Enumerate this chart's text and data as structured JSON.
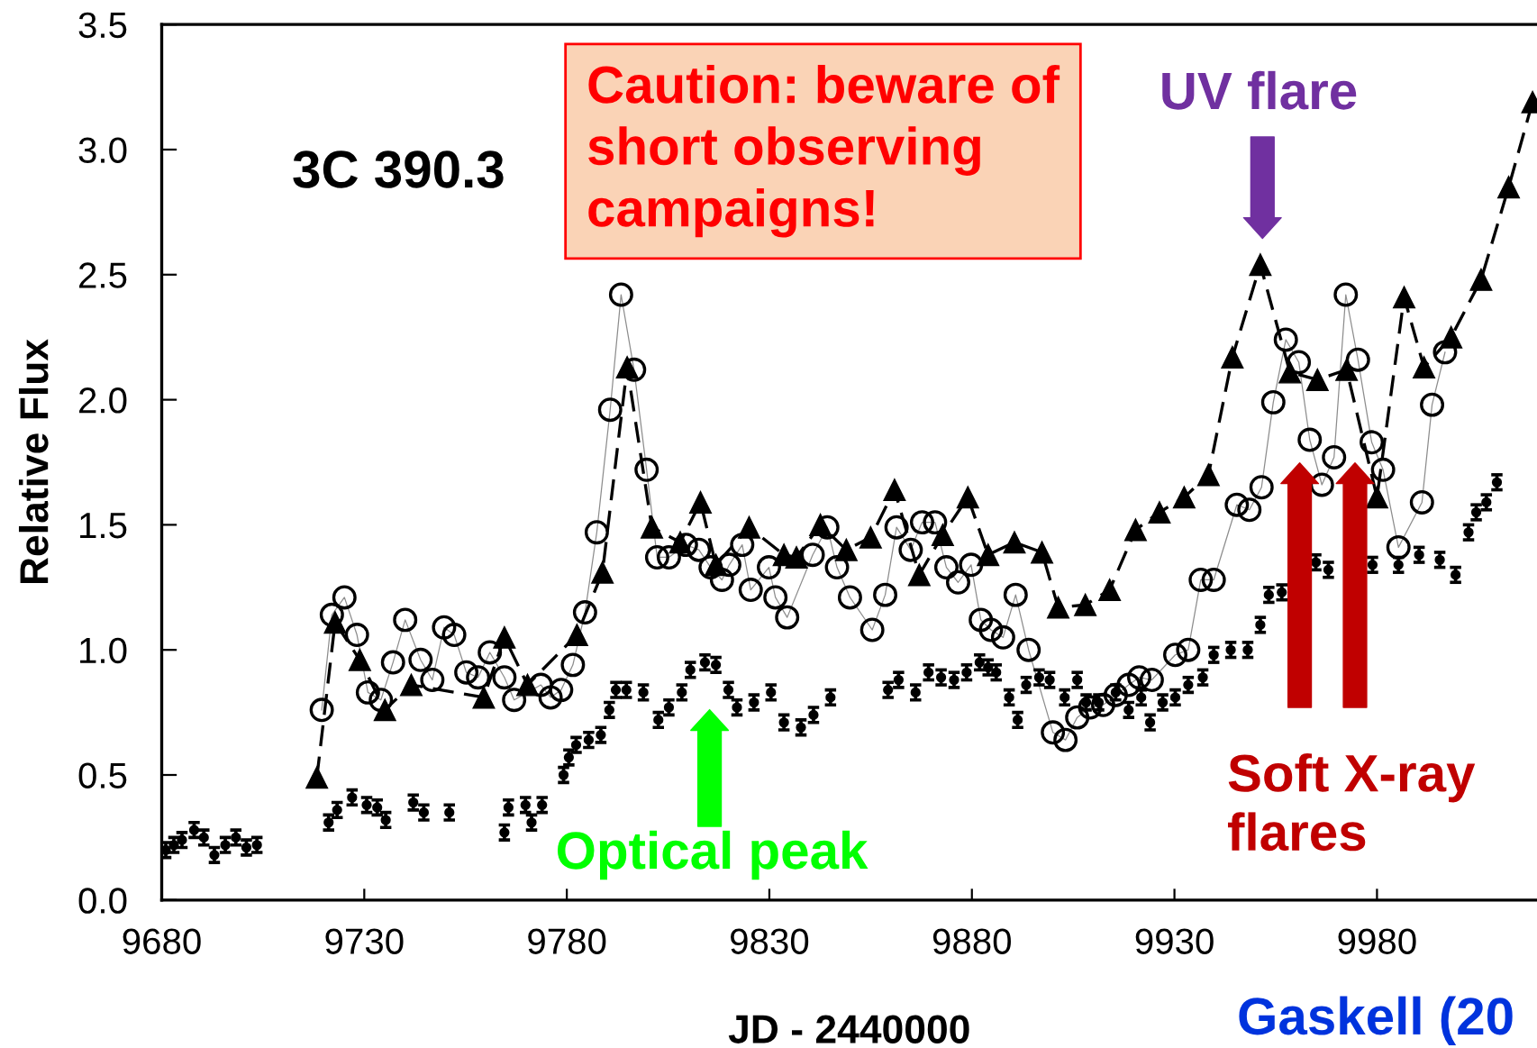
{
  "chart_data": {
    "type": "line",
    "xlabel": "JD - 2440000",
    "ylabel": "Relative Flux",
    "xlim": [
      9680,
      10019.5
    ],
    "ylim": [
      0,
      3.5
    ],
    "xticks": [
      9680,
      9730,
      9780,
      9830,
      9880,
      9930,
      9980
    ],
    "yticks": [
      {
        "value": 0,
        "label": "0.0"
      },
      {
        "value": 0.5,
        "label": "0.5"
      },
      {
        "value": 1,
        "label": "1.0"
      },
      {
        "value": 1.5,
        "label": "1.5"
      },
      {
        "value": 2,
        "label": "2.0"
      },
      {
        "value": 2.5,
        "label": "2.5"
      },
      {
        "value": 3,
        "label": "3.0"
      },
      {
        "value": 3.5,
        "label": "3.5"
      }
    ],
    "annotations": [
      "3C 390.3",
      "Caution: beware of\nshort observing\ncampaigns!",
      "UV flare",
      "Optical peak",
      "Soft X-ray\nflares",
      "Gaskell (20"
    ],
    "series": [
      {
        "color": "#000000",
        "marker": "circle",
        "line_style": "solid",
        "x": [
          9719.5,
          9722,
          9725.1,
          9728.2,
          9730.9,
          9734.1,
          9737.1,
          9740.1,
          9743.9,
          9746.8,
          9749.7,
          9752.2,
          9755.2,
          9758.1,
          9761,
          9764.6,
          9767,
          9773.6,
          9776,
          9778.6,
          9781.5,
          9784.5,
          9787.4,
          9790.7,
          9793.4,
          9796.6,
          9799.7,
          9802.3,
          9805.2,
          9809.4,
          9812.6,
          9815.5,
          9818.3,
          9820.1,
          9823.3,
          9825.4,
          9829.9,
          9831.5,
          9834.4,
          9840.7,
          9844.3,
          9846.7,
          9849.9,
          9855.4,
          9858.6,
          9861.4,
          9864.9,
          9867.7,
          9870.9,
          9873.7,
          9876.6,
          9879.8,
          9882.2,
          9884.7,
          9887.7,
          9890.8,
          9894,
          9900,
          9903.1,
          9906,
          9909.2,
          9912.4,
          9915.5,
          9918.7,
          9921.3,
          9924.4,
          9930.2,
          9933.4,
          9936.5,
          9939.7,
          9945.4,
          9948.5,
          9951.5,
          9954.4,
          9957.5,
          9960.7,
          9963.4,
          9966.4,
          9969.4,
          9972.3,
          9975.3,
          9978.7,
          9981.5,
          9985.3,
          9991.1,
          9993.6,
          9996.8
        ],
        "values": [
          0.76,
          1.14,
          1.21,
          1.06,
          0.83,
          0.8,
          0.95,
          1.12,
          0.96,
          0.88,
          1.09,
          1.06,
          0.91,
          0.89,
          0.99,
          0.89,
          0.8,
          0.86,
          0.81,
          0.84,
          0.94,
          1.15,
          1.47,
          1.96,
          2.42,
          2.12,
          1.72,
          1.37,
          1.37,
          1.42,
          1.4,
          1.33,
          1.28,
          1.34,
          1.42,
          1.24,
          1.33,
          1.21,
          1.13,
          1.38,
          1.49,
          1.33,
          1.21,
          1.08,
          1.22,
          1.49,
          1.4,
          1.51,
          1.51,
          1.33,
          1.27,
          1.34,
          1.12,
          1.08,
          1.05,
          1.22,
          1.0,
          0.67,
          0.64,
          0.73,
          0.77,
          0.78,
          0.82,
          0.86,
          0.89,
          0.88,
          0.98,
          1.0,
          1.28,
          1.28,
          1.58,
          1.56,
          1.65,
          1.99,
          2.24,
          2.15,
          1.84,
          1.66,
          1.77,
          2.42,
          2.16,
          1.83,
          1.72,
          1.41,
          1.59,
          1.98,
          2.19
        ]
      },
      {
        "color": "#000000",
        "marker": "triangle",
        "line_style": "dashed",
        "x": [
          9718.3,
          9722.8,
          9728.9,
          9735.1,
          9741.6,
          9759.5,
          9764.6,
          9770.3,
          9782.5,
          9788.8,
          9794.9,
          9801,
          9808,
          9813,
          9816.8,
          9825,
          9833.6,
          9836.7,
          9842.6,
          9849,
          9855,
          9860.9,
          9867,
          9872.8,
          9879,
          9884,
          9890.5,
          9897.3,
          9901.3,
          9908,
          9914,
          9920.4,
          9926.3,
          9932.4,
          9938.4,
          9944.3,
          9951.2,
          9958.5,
          9965.3,
          9972.5,
          9980,
          9986.7,
          9991.6,
          9998.3,
          10005.7,
          10012.5,
          10018.4
        ],
        "values": [
          0.49,
          1.11,
          0.96,
          0.76,
          0.86,
          0.81,
          1.05,
          0.86,
          1.06,
          1.31,
          2.13,
          1.49,
          1.43,
          1.59,
          1.34,
          1.49,
          1.38,
          1.37,
          1.5,
          1.4,
          1.45,
          1.64,
          1.3,
          1.46,
          1.61,
          1.38,
          1.43,
          1.39,
          1.17,
          1.18,
          1.24,
          1.48,
          1.55,
          1.61,
          1.7,
          2.17,
          2.54,
          2.11,
          2.08,
          2.12,
          1.61,
          2.41,
          2.13,
          2.25,
          2.48,
          2.85,
          3.19
        ]
      },
      {
        "type": "scatter",
        "color": "#000000",
        "marker": "circle",
        "x": [
          9681,
          9683,
          9685,
          9688,
          9690.4,
          9693,
          9695.7,
          9698.3,
          9700.9,
          9703.5,
          9721.2,
          9723.3,
          9727,
          9730.6,
          9733.2,
          9735.3,
          9742.1,
          9744.7,
          9751,
          9764.6,
          9765.6,
          9769.8,
          9771.3,
          9773.9,
          9779.2,
          9780.5,
          9782.3,
          9785.4,
          9788.4,
          9790.5,
          9792.1,
          9794.7,
          9798.9,
          9802.6,
          9805.2,
          9808.4,
          9810.5,
          9814.1,
          9816.8,
          9819.9,
          9822,
          9826.2,
          9830.4,
          9833.6,
          9837.8,
          9840.9,
          9845.1,
          9859.3,
          9861.9,
          9866.1,
          9869.3,
          9872.4,
          9875.6,
          9878.7,
          9881.9,
          9884,
          9886,
          9889.2,
          9891.3,
          9893.4,
          9896.6,
          9899.2,
          9902.9,
          9906,
          9908.2,
          9911.3,
          9915.5,
          9918.7,
          9921.8,
          9924,
          9927.1,
          9930.2,
          9933.4,
          9937,
          9939.7,
          9943.9,
          9948.1,
          9951.2,
          9953.3,
          9956.5,
          9959.7,
          9962,
          9964.9,
          9968,
          9972.5,
          9975,
          9978.9,
          9985.3,
          9990.4,
          9995.5,
          9999.4,
          10002.6,
          10004.5,
          10007,
          10009.6
        ],
        "values": [
          0.2,
          0.22,
          0.24,
          0.28,
          0.25,
          0.18,
          0.22,
          0.25,
          0.21,
          0.22,
          0.31,
          0.36,
          0.41,
          0.38,
          0.37,
          0.32,
          0.39,
          0.35,
          0.35,
          0.27,
          0.37,
          0.38,
          0.31,
          0.38,
          0.5,
          0.57,
          0.62,
          0.64,
          0.66,
          0.76,
          0.84,
          0.84,
          0.83,
          0.72,
          0.77,
          0.83,
          0.92,
          0.95,
          0.94,
          0.84,
          0.77,
          0.79,
          0.83,
          0.71,
          0.69,
          0.74,
          0.81,
          0.84,
          0.88,
          0.83,
          0.91,
          0.89,
          0.88,
          0.91,
          0.95,
          0.93,
          0.91,
          0.81,
          0.72,
          0.86,
          0.89,
          0.88,
          0.81,
          0.88,
          0.79,
          0.79,
          0.83,
          0.76,
          0.81,
          0.71,
          0.79,
          0.81,
          0.86,
          0.89,
          0.98,
          1.0,
          1.0,
          1.1,
          1.22,
          1.23,
          null,
          null,
          1.35,
          1.32,
          null,
          null,
          1.34,
          1.34,
          1.38,
          1.36,
          1.3,
          1.47,
          1.55,
          1.59,
          1.67
        ],
        "errors": [
          0.03,
          0.03,
          0.03,
          0.03,
          0.03,
          0.03,
          0.03,
          0.03,
          0.03,
          0.03,
          0.03,
          0.03,
          0.03,
          0.03,
          0.03,
          0.03,
          0.03,
          0.03,
          0.03,
          0.03,
          0.03,
          0.03,
          0.03,
          0.03,
          0.03,
          0.03,
          0.03,
          0.03,
          0.03,
          0.03,
          0.03,
          0.03,
          0.03,
          0.03,
          0.03,
          0.03,
          0.03,
          0.03,
          0.03,
          0.03,
          0.03,
          0.03,
          0.03,
          0.03,
          0.03,
          0.03,
          0.03,
          0.03,
          0.03,
          0.03,
          0.03,
          0.03,
          0.03,
          0.03,
          0.03,
          0.03,
          0.03,
          0.03,
          0.03,
          0.03,
          0.03,
          0.03,
          0.03,
          0.03,
          0.03,
          0.03,
          0.03,
          0.03,
          0.03,
          0.03,
          0.03,
          0.03,
          0.03,
          0.03,
          0.03,
          0.03,
          0.03,
          0.03,
          0.03,
          0.03,
          null,
          null,
          0.03,
          0.03,
          null,
          null,
          0.03,
          0.03,
          0.03,
          0.03,
          0.03,
          0.03,
          0.03,
          0.03,
          0.03
        ]
      }
    ]
  }
}
